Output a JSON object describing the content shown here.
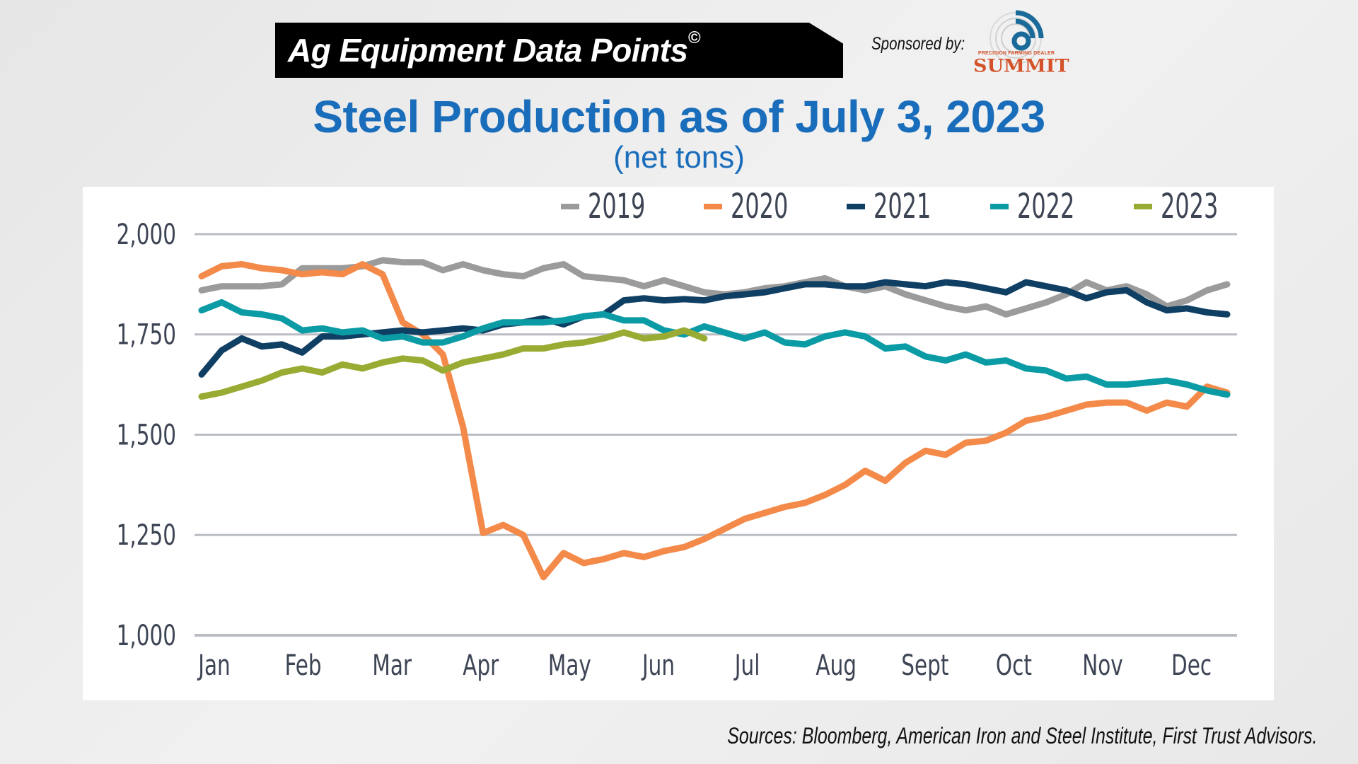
{
  "header": {
    "banner_title": "Ag Equipment Data Points",
    "banner_mark": "©",
    "sponsored_by": "Sponsored by:",
    "sponsor_logo_small": "PRECISION FARMING DEALER",
    "sponsor_logo_big": "SUMMIT"
  },
  "sources": "Sources: Bloomberg, American Iron and Steel Institute, First Trust Advisors.",
  "colors": {
    "title": "#1a6dba",
    "2019": "#9b9b9b",
    "2020": "#f48a4a",
    "2021": "#103f64",
    "2022": "#0b9ba5",
    "2023": "#9aab33",
    "grid": "#b9bcc2",
    "logo_blue": "#1b6b9a",
    "logo_orange": "#d4532a"
  },
  "chart_data": {
    "type": "line",
    "title": "Steel Production as of July 3, 2023",
    "subtitle": "(net tons)",
    "xlabel": "",
    "ylabel": "",
    "x_unit": "week of year",
    "x_range": [
      1,
      52
    ],
    "ylim": [
      1000,
      2000
    ],
    "yticks": [
      1000,
      1250,
      1500,
      1750,
      2000
    ],
    "ytick_labels": [
      "1,000",
      "1,250",
      "1,500",
      "1,750",
      "2,000"
    ],
    "xtick_labels": [
      "Jan",
      "Feb",
      "Mar",
      "Apr",
      "May",
      "Jun",
      "Jul",
      "Aug",
      "Sept",
      "Oct",
      "Nov",
      "Dec"
    ],
    "grid": true,
    "legend_position": "top-right",
    "series": [
      {
        "name": "2019",
        "values": [
          1860,
          1870,
          1870,
          1870,
          1875,
          1915,
          1915,
          1915,
          1920,
          1935,
          1930,
          1930,
          1910,
          1925,
          1910,
          1900,
          1895,
          1915,
          1925,
          1895,
          1890,
          1885,
          1870,
          1885,
          1870,
          1855,
          1850,
          1855,
          1865,
          1870,
          1880,
          1890,
          1870,
          1860,
          1870,
          1850,
          1835,
          1820,
          1810,
          1820,
          1800,
          1815,
          1830,
          1850,
          1880,
          1860,
          1870,
          1850,
          1820,
          1835,
          1860,
          1875
        ]
      },
      {
        "name": "2020",
        "values": [
          1895,
          1920,
          1925,
          1915,
          1910,
          1900,
          1905,
          1900,
          1925,
          1900,
          1780,
          1750,
          1700,
          1520,
          1255,
          1275,
          1250,
          1145,
          1205,
          1180,
          1190,
          1205,
          1195,
          1210,
          1220,
          1240,
          1265,
          1290,
          1305,
          1320,
          1330,
          1350,
          1375,
          1410,
          1385,
          1430,
          1460,
          1450,
          1480,
          1485,
          1505,
          1535,
          1545,
          1560,
          1575,
          1580,
          1580,
          1560,
          1580,
          1570,
          1620,
          1605
        ]
      },
      {
        "name": "2021",
        "values": [
          1650,
          1710,
          1740,
          1720,
          1725,
          1705,
          1745,
          1745,
          1750,
          1755,
          1760,
          1755,
          1760,
          1765,
          1760,
          1775,
          1780,
          1790,
          1775,
          1795,
          1800,
          1835,
          1840,
          1835,
          1838,
          1835,
          1845,
          1850,
          1855,
          1865,
          1875,
          1875,
          1870,
          1870,
          1880,
          1875,
          1870,
          1880,
          1875,
          1865,
          1855,
          1880,
          1870,
          1860,
          1840,
          1855,
          1860,
          1830,
          1810,
          1815,
          1805,
          1800
        ]
      },
      {
        "name": "2022",
        "values": [
          1810,
          1830,
          1805,
          1800,
          1790,
          1760,
          1765,
          1755,
          1760,
          1740,
          1745,
          1730,
          1730,
          1745,
          1765,
          1780,
          1780,
          1780,
          1785,
          1795,
          1800,
          1785,
          1785,
          1760,
          1750,
          1770,
          1755,
          1740,
          1755,
          1730,
          1725,
          1745,
          1755,
          1745,
          1715,
          1720,
          1695,
          1685,
          1700,
          1680,
          1685,
          1665,
          1660,
          1640,
          1645,
          1625,
          1625,
          1630,
          1635,
          1625,
          1610,
          1600
        ]
      },
      {
        "name": "2023",
        "values": [
          1595,
          1605,
          1620,
          1635,
          1655,
          1665,
          1655,
          1675,
          1665,
          1680,
          1690,
          1685,
          1660,
          1680,
          1690,
          1700,
          1715,
          1715,
          1725,
          1730,
          1740,
          1755,
          1740,
          1745,
          1760,
          1740
        ]
      }
    ]
  }
}
